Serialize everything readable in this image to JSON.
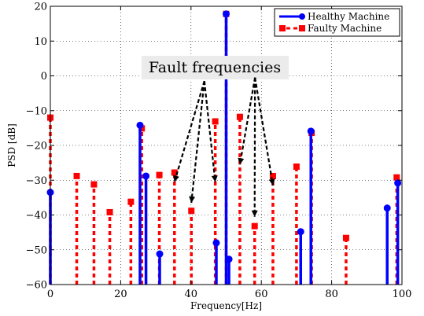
{
  "chart_data": {
    "type": "stem",
    "xlabel": "Frequency[Hz]",
    "ylabel": "PSD [dB]",
    "xlim": [
      0,
      100
    ],
    "ylim": [
      -60,
      20
    ],
    "xticks": [
      0,
      20,
      40,
      60,
      80,
      100
    ],
    "yticks": [
      -60,
      -50,
      -40,
      -30,
      -20,
      -10,
      0,
      10,
      20
    ],
    "grid": true,
    "legend_position": "top-right",
    "series": [
      {
        "name": "Healthy Machine",
        "color": "#0000ff",
        "line": "solid",
        "marker": "circle",
        "x": [
          0,
          25.5,
          27.2,
          31.1,
          47.2,
          50,
          50.8,
          71.2,
          74.1,
          95.8,
          98.8
        ],
        "y": [
          -33.5,
          -14.2,
          -28.8,
          -51.2,
          -48,
          17.8,
          -52.7,
          -44.8,
          -15.9,
          -38,
          -30.8
        ]
      },
      {
        "name": "Faulty Machine",
        "color": "#ff0000",
        "line": "dashed",
        "marker": "square",
        "x": [
          0,
          7.5,
          12.4,
          16.9,
          22.9,
          26.0,
          31.0,
          35.3,
          40.1,
          46.9,
          50.0,
          53.9,
          58.1,
          63.3,
          70.0,
          74.3,
          84.1,
          98.5
        ],
        "y": [
          -12,
          -28.8,
          -31.2,
          -39.2,
          -36.2,
          -15.1,
          -28.5,
          -27.8,
          -38.8,
          -13.1,
          17.8,
          -11.8,
          -43.2,
          -28.8,
          -26.1,
          -16.4,
          -46.6,
          -29.2
        ]
      }
    ],
    "annotation": {
      "text": "Fault frequencies",
      "apex_left": [
        43.8,
        -1.5
      ],
      "apex_right": [
        58.2,
        -0.5
      ],
      "arrow_targets_left": [
        [
          35.3,
          -30.5
        ],
        [
          40.1,
          -36.5
        ],
        [
          46.9,
          -30.5
        ]
      ],
      "arrow_targets_right": [
        [
          53.9,
          -25.5
        ],
        [
          58.1,
          -40.5
        ],
        [
          63.3,
          -31.5
        ]
      ]
    }
  }
}
